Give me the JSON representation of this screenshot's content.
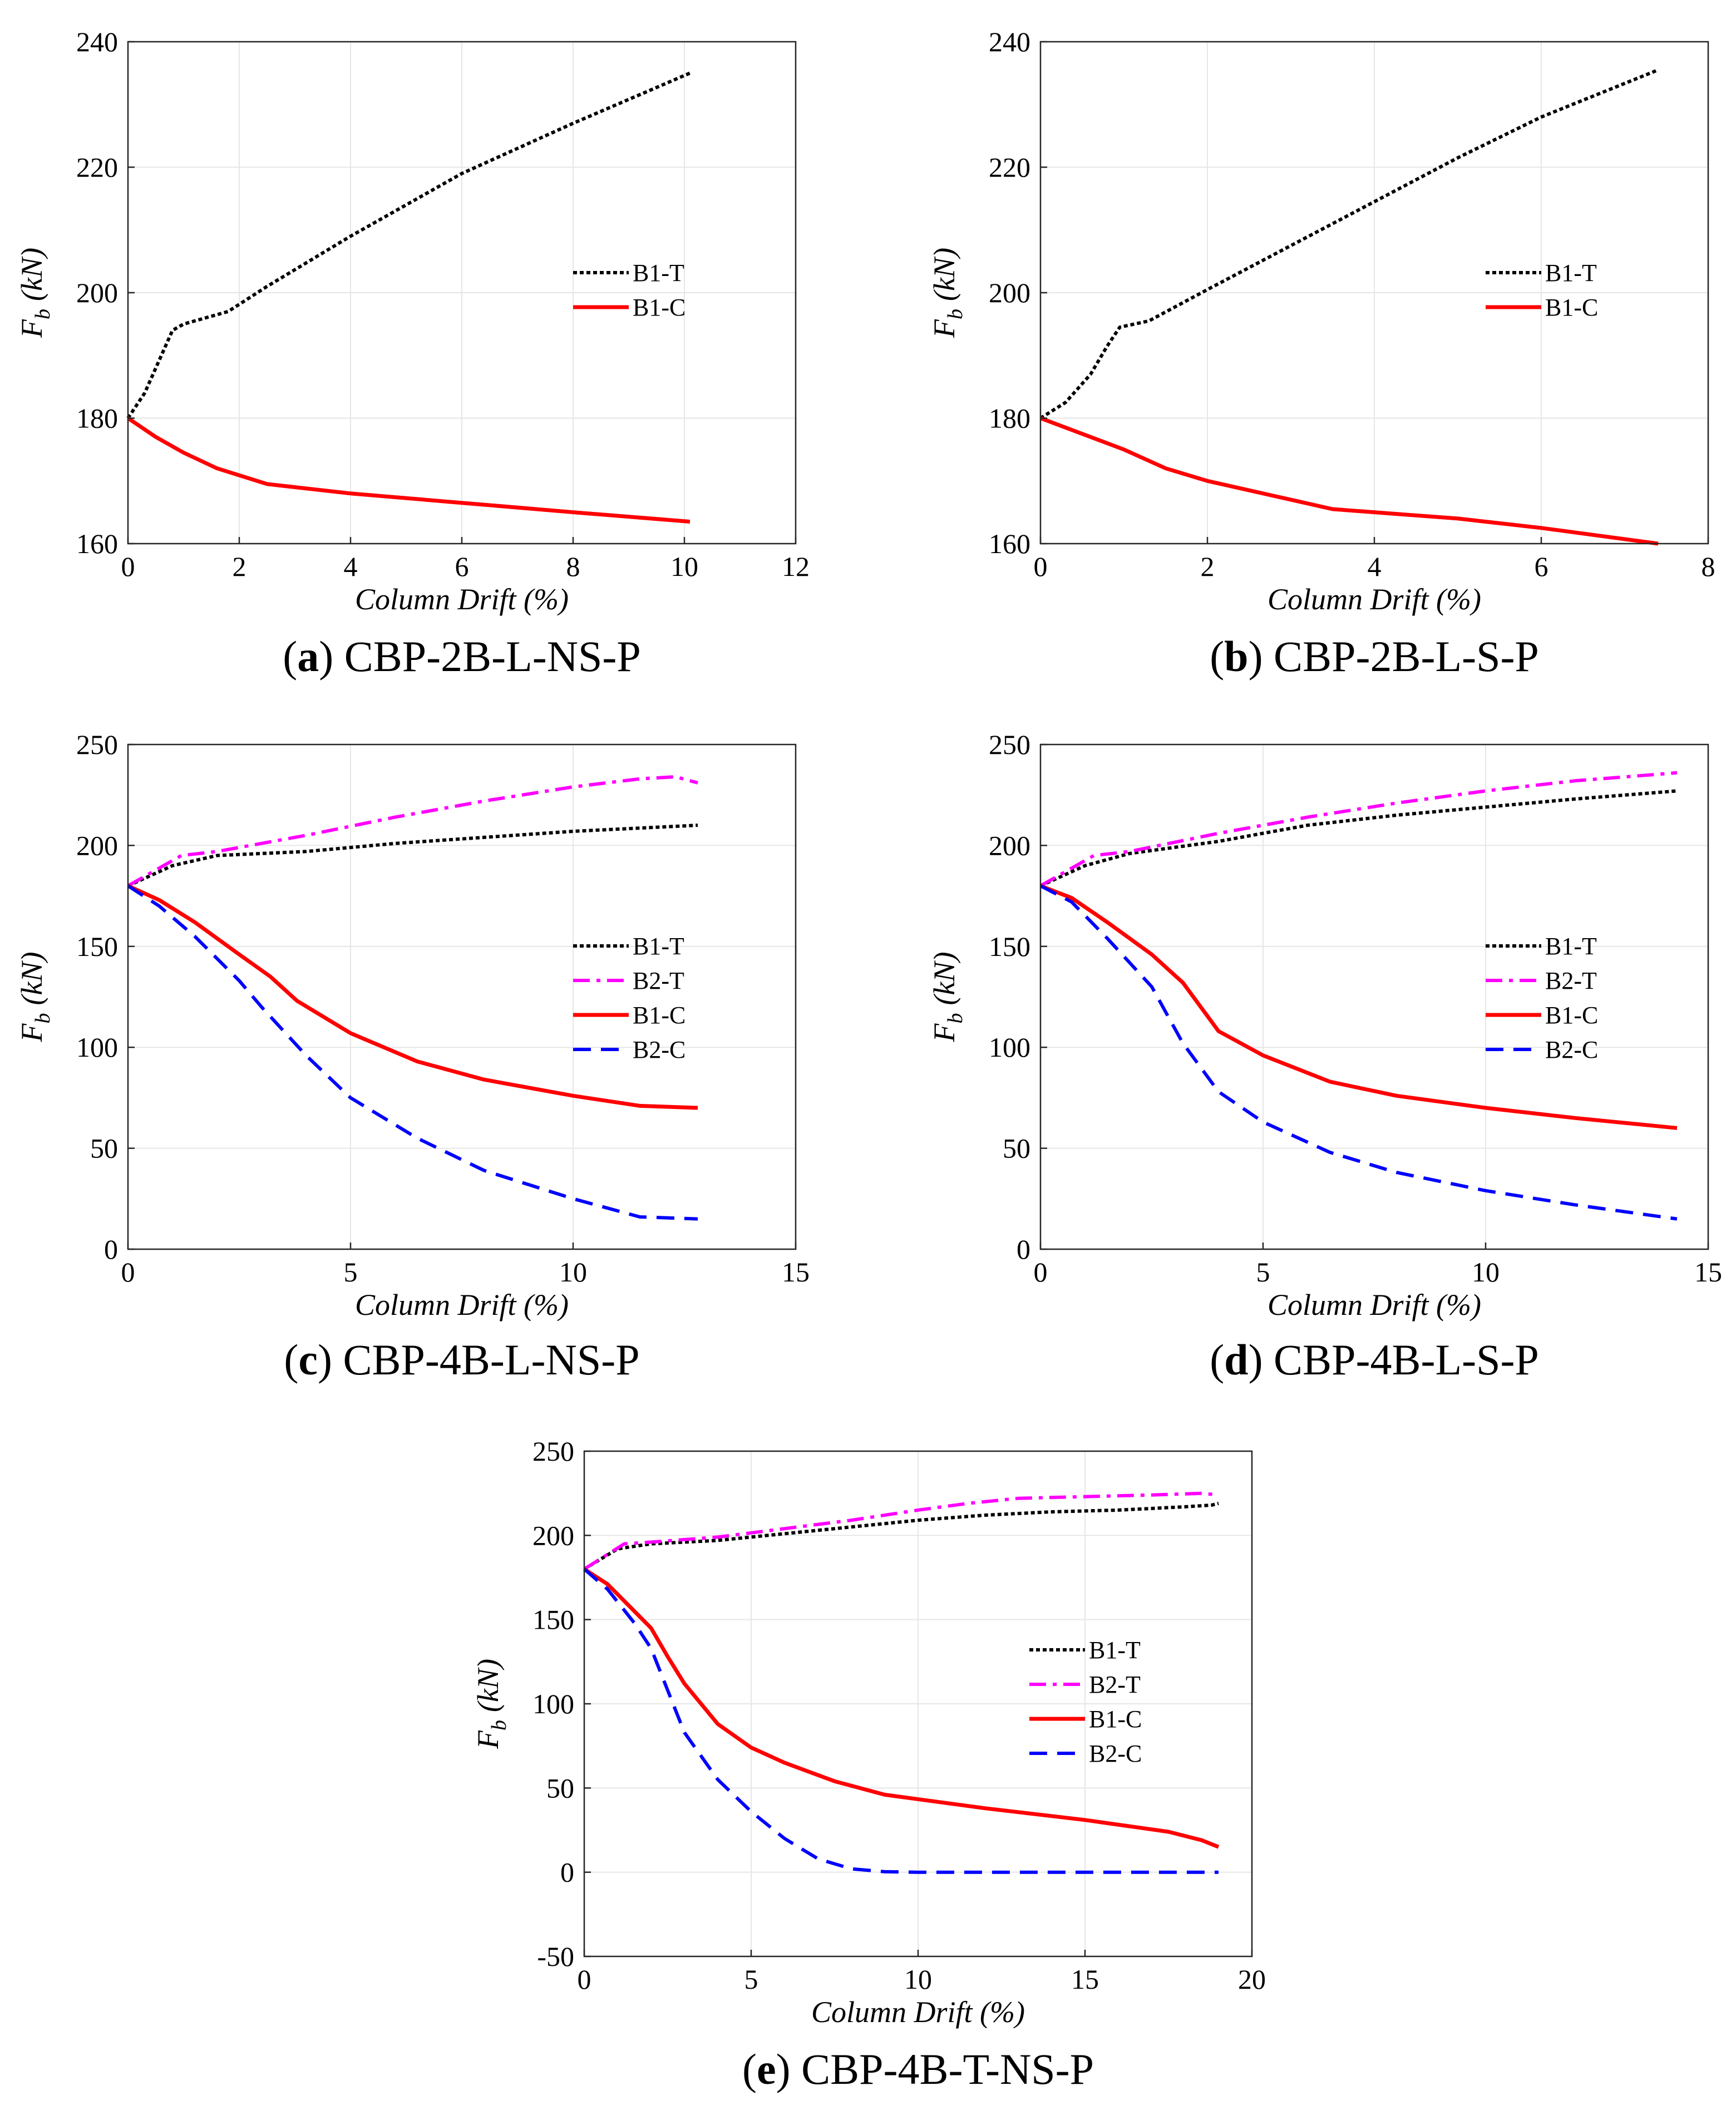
{
  "colors": {
    "B1-T": "#000000",
    "B2-T": "#ff00ff",
    "B1-C": "#ff0000",
    "B2-C": "#0000ff",
    "grid": "#e6e6e6"
  },
  "chart_data": [
    {
      "type": "line",
      "caption_letter": "a",
      "caption": "CBP-2B-L-NS-P",
      "xlabel": "Column Drift (%)",
      "ylabel": "Fb (kN)",
      "ylabel_main": "F",
      "ylabel_sub": "b",
      "ylabel_unit": "(kN)",
      "xlim": [
        0,
        12
      ],
      "ylim": [
        160,
        240
      ],
      "xticks": [
        0,
        2,
        4,
        6,
        8,
        10,
        12
      ],
      "yticks": [
        160,
        180,
        200,
        220,
        240
      ],
      "grid": true,
      "legend_location": "right",
      "series": [
        {
          "name": "B1-T",
          "style": "dotted",
          "x": [
            0,
            0.3,
            0.6,
            0.8,
            1.0,
            1.8,
            2.5,
            4,
            6,
            8,
            10.1
          ],
          "y": [
            180,
            184,
            190,
            194,
            195,
            197,
            201,
            209,
            219,
            227,
            235
          ]
        },
        {
          "name": "B1-C",
          "style": "solid",
          "x": [
            0,
            0.5,
            1.0,
            1.6,
            2.5,
            4,
            6,
            8,
            10.1
          ],
          "y": [
            180,
            177,
            174.5,
            172,
            169.5,
            168,
            166.5,
            165,
            163.5
          ]
        }
      ]
    },
    {
      "type": "line",
      "caption_letter": "b",
      "caption": "CBP-2B-L-S-P",
      "xlabel": "Column Drift (%)",
      "ylabel": "Fb (kN)",
      "ylabel_main": "F",
      "ylabel_sub": "b",
      "ylabel_unit": "(kN)",
      "xlim": [
        0,
        8
      ],
      "ylim": [
        160,
        240
      ],
      "xticks": [
        0,
        2,
        4,
        6,
        8
      ],
      "yticks": [
        160,
        180,
        200,
        220,
        240
      ],
      "grid": true,
      "legend_location": "right",
      "series": [
        {
          "name": "B1-T",
          "style": "dotted",
          "x": [
            0,
            0.3,
            0.6,
            0.8,
            0.95,
            1.3,
            2,
            3,
            4,
            5,
            6,
            7.4
          ],
          "y": [
            180,
            182.5,
            187,
            191.5,
            194.5,
            195.5,
            200.5,
            207.5,
            214.5,
            221.5,
            228,
            235.5
          ]
        },
        {
          "name": "B1-C",
          "style": "solid",
          "x": [
            0,
            0.5,
            1,
            1.5,
            2,
            2.5,
            3,
            3.5,
            4,
            5,
            6,
            7.4
          ],
          "y": [
            180,
            177.5,
            175,
            172,
            170,
            168.5,
            167,
            165.5,
            165,
            164,
            162.5,
            160
          ]
        }
      ]
    },
    {
      "type": "line",
      "caption_letter": "c",
      "caption": "CBP-4B-L-NS-P",
      "xlabel": "Column Drift (%)",
      "ylabel": "Fb (kN)",
      "ylabel_main": "F",
      "ylabel_sub": "b",
      "ylabel_unit": "(kN)",
      "xlim": [
        0,
        15
      ],
      "ylim": [
        0,
        250
      ],
      "xticks": [
        0,
        5,
        10,
        15
      ],
      "yticks": [
        0,
        50,
        100,
        150,
        200,
        250
      ],
      "grid": true,
      "legend_location": "right",
      "series": [
        {
          "name": "B1-T",
          "style": "dotted",
          "x": [
            0,
            1,
            2,
            4,
            6,
            8,
            10,
            12.8
          ],
          "y": [
            180,
            190,
            195,
            197,
            201,
            204,
            207,
            210
          ]
        },
        {
          "name": "B2-T",
          "style": "dashdot",
          "x": [
            0,
            1.2,
            2,
            4,
            6,
            8,
            10,
            11.5,
            12.3,
            12.8
          ],
          "y": [
            180,
            195,
            197,
            205,
            214,
            222,
            229,
            233,
            234,
            231
          ]
        },
        {
          "name": "B1-C",
          "style": "solid",
          "x": [
            0,
            0.7,
            1.5,
            2.5,
            3.2,
            3.8,
            5,
            6.5,
            8,
            10,
            11.5,
            12.8
          ],
          "y": [
            180,
            173,
            162,
            146,
            135,
            123,
            107,
            93,
            84,
            76,
            71,
            70
          ]
        },
        {
          "name": "B2-C",
          "style": "dashed",
          "x": [
            0,
            0.7,
            1.5,
            2.5,
            3,
            4,
            5,
            6.5,
            8,
            10,
            11.5,
            12.8
          ],
          "y": [
            180,
            170,
            155,
            133,
            120,
            96,
            75,
            55,
            39,
            25,
            16,
            15
          ]
        }
      ]
    },
    {
      "type": "line",
      "caption_letter": "d",
      "caption": "CBP-4B-L-S-P",
      "xlabel": "Column Drift (%)",
      "ylabel": "Fb (kN)",
      "ylabel_main": "F",
      "ylabel_sub": "b",
      "ylabel_unit": "(kN)",
      "xlim": [
        0,
        15
      ],
      "ylim": [
        0,
        250
      ],
      "xticks": [
        0,
        5,
        10,
        15
      ],
      "yticks": [
        0,
        50,
        100,
        150,
        200,
        250
      ],
      "grid": true,
      "legend_location": "right",
      "series": [
        {
          "name": "B1-T",
          "style": "dotted",
          "x": [
            0,
            1,
            2,
            4,
            6,
            8,
            10,
            12,
            14.3
          ],
          "y": [
            180,
            190,
            196,
            202,
            210,
            215,
            219,
            223,
            227
          ]
        },
        {
          "name": "B2-T",
          "style": "dashdot",
          "x": [
            0,
            1.2,
            2,
            4,
            6,
            8,
            10,
            12,
            14.3
          ],
          "y": [
            180,
            195,
            197,
            206,
            214,
            221,
            227,
            232,
            236
          ]
        },
        {
          "name": "B1-C",
          "style": "solid",
          "x": [
            0,
            0.7,
            1.5,
            2.5,
            3.2,
            4,
            5,
            6.5,
            8,
            10,
            12,
            14.3
          ],
          "y": [
            180,
            174,
            162,
            146,
            132,
            108,
            96,
            83,
            76,
            70,
            65,
            60
          ]
        },
        {
          "name": "B2-C",
          "style": "dashed",
          "x": [
            0,
            0.7,
            1.5,
            2.5,
            3.2,
            4,
            5,
            6.5,
            8,
            10,
            12,
            14.3
          ],
          "y": [
            180,
            172,
            154,
            130,
            102,
            78,
            63,
            48,
            38,
            29,
            22,
            15
          ]
        }
      ]
    },
    {
      "type": "line",
      "caption_letter": "e",
      "caption": "CBP-4B-T-NS-P",
      "xlabel": "Column Drift (%)",
      "ylabel": "Fb (kN)",
      "ylabel_main": "F",
      "ylabel_sub": "b",
      "ylabel_unit": "(kN)",
      "xlim": [
        0,
        20
      ],
      "ylim": [
        -50,
        250
      ],
      "xticks": [
        0,
        5,
        10,
        15,
        20
      ],
      "yticks": [
        -50,
        0,
        50,
        100,
        150,
        200,
        250
      ],
      "grid": true,
      "legend_location": "right",
      "series": [
        {
          "name": "B1-T",
          "style": "dotted",
          "x": [
            0,
            1,
            2,
            4,
            6,
            8,
            10,
            12,
            14,
            16,
            18,
            18.8,
            19
          ],
          "y": [
            180,
            192,
            195,
            197,
            201,
            205,
            209,
            212,
            214,
            215,
            217,
            218,
            219
          ]
        },
        {
          "name": "B2-T",
          "style": "dashdot",
          "x": [
            0,
            1.2,
            2,
            4,
            6,
            8,
            10,
            11.5,
            13,
            15,
            17,
            18.5,
            19
          ],
          "y": [
            180,
            195,
            196,
            199,
            204,
            209,
            215,
            219,
            222,
            223,
            224,
            225,
            224
          ]
        },
        {
          "name": "B1-C",
          "style": "solid",
          "x": [
            0,
            0.7,
            1.5,
            2,
            2.5,
            3,
            4,
            5,
            6,
            7.5,
            9,
            12,
            15,
            17.5,
            18.5,
            19
          ],
          "y": [
            180,
            171,
            155,
            145,
            128,
            112,
            88,
            74,
            65,
            54,
            46,
            38,
            31,
            24,
            19,
            15
          ]
        },
        {
          "name": "B2-C",
          "style": "dashed",
          "x": [
            0,
            0.7,
            1.5,
            2,
            2.5,
            3,
            4,
            5,
            6,
            7,
            8,
            9,
            10,
            12,
            15,
            19
          ],
          "y": [
            180,
            168,
            148,
            133,
            108,
            83,
            55,
            36,
            20,
            8,
            2,
            0.3,
            0,
            0,
            0,
            0
          ]
        }
      ]
    }
  ]
}
